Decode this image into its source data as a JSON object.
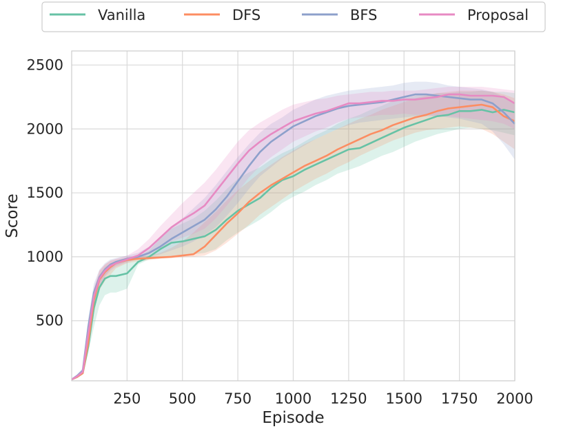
{
  "chart_data": {
    "type": "line",
    "title": "",
    "xlabel": "Episode",
    "ylabel": "Score",
    "xlim": [
      0,
      2000
    ],
    "ylim": [
      30,
      2610
    ],
    "xticks": [
      250,
      500,
      750,
      1000,
      1250,
      1500,
      1750,
      2000
    ],
    "xtick_labels": [
      "250",
      "500",
      "750",
      "1000",
      "1250",
      "1500",
      "1750",
      "2000"
    ],
    "yticks": [
      500,
      1000,
      1500,
      2000,
      2500
    ],
    "ytick_labels": [
      "500",
      "1000",
      "1500",
      "2000",
      "2500"
    ],
    "grid": true,
    "legend_position": "top, above plot",
    "x": [
      0,
      25,
      50,
      75,
      100,
      125,
      150,
      175,
      200,
      250,
      300,
      350,
      400,
      450,
      500,
      550,
      600,
      650,
      700,
      750,
      800,
      850,
      900,
      950,
      1000,
      1050,
      1100,
      1150,
      1200,
      1250,
      1300,
      1350,
      1400,
      1450,
      1500,
      1550,
      1600,
      1650,
      1700,
      1750,
      1800,
      1850,
      1900,
      1950,
      2000
    ],
    "series": [
      {
        "name": "Vanilla",
        "color": "#66c2a5",
        "values": [
          40,
          60,
          90,
          300,
          600,
          760,
          830,
          850,
          850,
          870,
          960,
          1000,
          1060,
          1110,
          1120,
          1140,
          1160,
          1210,
          1290,
          1360,
          1410,
          1460,
          1540,
          1600,
          1630,
          1680,
          1720,
          1760,
          1800,
          1840,
          1850,
          1890,
          1930,
          1970,
          2010,
          2040,
          2070,
          2100,
          2110,
          2140,
          2140,
          2150,
          2130,
          2150,
          2130
        ],
        "lower": [
          40,
          55,
          80,
          250,
          450,
          620,
          700,
          720,
          720,
          750,
          940,
          980,
          990,
          1000,
          1010,
          1020,
          1030,
          1060,
          1130,
          1190,
          1240,
          1290,
          1350,
          1420,
          1470,
          1510,
          1560,
          1600,
          1650,
          1680,
          1710,
          1750,
          1790,
          1820,
          1860,
          1900,
          1930,
          1960,
          1980,
          2000,
          2010,
          2000,
          1990,
          1970,
          1950
        ],
        "upper": [
          40,
          70,
          110,
          350,
          720,
          860,
          920,
          950,
          960,
          980,
          1000,
          1050,
          1140,
          1220,
          1260,
          1300,
          1360,
          1440,
          1530,
          1610,
          1660,
          1700,
          1760,
          1810,
          1850,
          1900,
          1950,
          1990,
          2040,
          2080,
          2110,
          2150,
          2180,
          2220,
          2240,
          2260,
          2270,
          2280,
          2280,
          2290,
          2290,
          2300,
          2290,
          2290,
          2280
        ]
      },
      {
        "name": "DFS",
        "color": "#fc8d62",
        "values": [
          40,
          60,
          90,
          330,
          660,
          820,
          880,
          920,
          950,
          975,
          985,
          990,
          995,
          1000,
          1010,
          1020,
          1080,
          1170,
          1260,
          1340,
          1430,
          1500,
          1560,
          1610,
          1660,
          1710,
          1750,
          1790,
          1840,
          1880,
          1920,
          1960,
          1990,
          2030,
          2060,
          2090,
          2110,
          2140,
          2160,
          2170,
          2180,
          2190,
          2170,
          2100,
          2060
        ],
        "lower": [
          40,
          55,
          80,
          270,
          560,
          740,
          810,
          860,
          910,
          950,
          965,
          975,
          985,
          990,
          995,
          1000,
          1010,
          1050,
          1110,
          1180,
          1250,
          1330,
          1390,
          1450,
          1510,
          1560,
          1610,
          1650,
          1700,
          1740,
          1790,
          1830,
          1870,
          1910,
          1940,
          1970,
          1990,
          2000,
          2010,
          2020,
          2010,
          2000,
          1960,
          1900,
          1840
        ],
        "upper": [
          40,
          70,
          110,
          380,
          740,
          890,
          940,
          970,
          980,
          995,
          1000,
          1010,
          1030,
          1070,
          1120,
          1190,
          1270,
          1350,
          1440,
          1520,
          1590,
          1660,
          1720,
          1780,
          1830,
          1880,
          1920,
          1960,
          2000,
          2040,
          2080,
          2110,
          2150,
          2180,
          2210,
          2240,
          2260,
          2280,
          2290,
          2300,
          2300,
          2300,
          2290,
          2270,
          2240
        ]
      },
      {
        "name": "BFS",
        "color": "#8da0cb",
        "values": [
          40,
          70,
          110,
          450,
          720,
          840,
          900,
          940,
          960,
          985,
          1000,
          1030,
          1080,
          1140,
          1190,
          1240,
          1290,
          1370,
          1470,
          1590,
          1710,
          1820,
          1900,
          1960,
          2020,
          2060,
          2100,
          2130,
          2160,
          2180,
          2190,
          2200,
          2210,
          2230,
          2250,
          2270,
          2270,
          2260,
          2250,
          2240,
          2230,
          2230,
          2200,
          2130,
          2040
        ],
        "lower": [
          40,
          60,
          90,
          370,
          640,
          780,
          850,
          900,
          930,
          960,
          980,
          1000,
          1020,
          1050,
          1080,
          1120,
          1170,
          1230,
          1320,
          1420,
          1530,
          1630,
          1700,
          1770,
          1820,
          1870,
          1920,
          1960,
          2000,
          2030,
          2050,
          2060,
          2070,
          2080,
          2090,
          2100,
          2100,
          2100,
          2090,
          2080,
          2060,
          2040,
          1980,
          1880,
          1760
        ],
        "upper": [
          40,
          80,
          130,
          520,
          790,
          900,
          950,
          980,
          990,
          1010,
          1030,
          1080,
          1160,
          1240,
          1300,
          1380,
          1460,
          1560,
          1670,
          1780,
          1880,
          1970,
          2040,
          2090,
          2150,
          2190,
          2230,
          2260,
          2280,
          2300,
          2310,
          2320,
          2330,
          2340,
          2360,
          2370,
          2370,
          2360,
          2340,
          2330,
          2320,
          2310,
          2290,
          2250,
          2200
        ]
      },
      {
        "name": "Proposal",
        "color": "#e78ac3",
        "values": [
          40,
          65,
          100,
          400,
          690,
          830,
          890,
          930,
          950,
          980,
          1010,
          1070,
          1150,
          1230,
          1290,
          1340,
          1400,
          1510,
          1620,
          1730,
          1830,
          1900,
          1960,
          2010,
          2060,
          2090,
          2120,
          2140,
          2170,
          2200,
          2200,
          2210,
          2220,
          2220,
          2230,
          2230,
          2240,
          2250,
          2270,
          2270,
          2260,
          2260,
          2260,
          2250,
          2200
        ],
        "lower": [
          40,
          55,
          85,
          330,
          600,
          760,
          840,
          890,
          920,
          955,
          985,
          1020,
          1070,
          1120,
          1150,
          1180,
          1220,
          1300,
          1400,
          1510,
          1620,
          1710,
          1780,
          1840,
          1900,
          1940,
          1980,
          2010,
          2050,
          2080,
          2090,
          2100,
          2110,
          2110,
          2120,
          2110,
          2110,
          2100,
          2100,
          2090,
          2080,
          2070,
          2060,
          2040,
          2000
        ],
        "upper": [
          40,
          75,
          115,
          470,
          760,
          890,
          940,
          970,
          985,
          1010,
          1060,
          1140,
          1240,
          1330,
          1420,
          1500,
          1580,
          1680,
          1790,
          1900,
          1990,
          2050,
          2100,
          2150,
          2190,
          2210,
          2230,
          2240,
          2260,
          2270,
          2280,
          2290,
          2290,
          2300,
          2300,
          2300,
          2310,
          2320,
          2330,
          2330,
          2330,
          2330,
          2320,
          2310,
          2300
        ]
      }
    ]
  }
}
